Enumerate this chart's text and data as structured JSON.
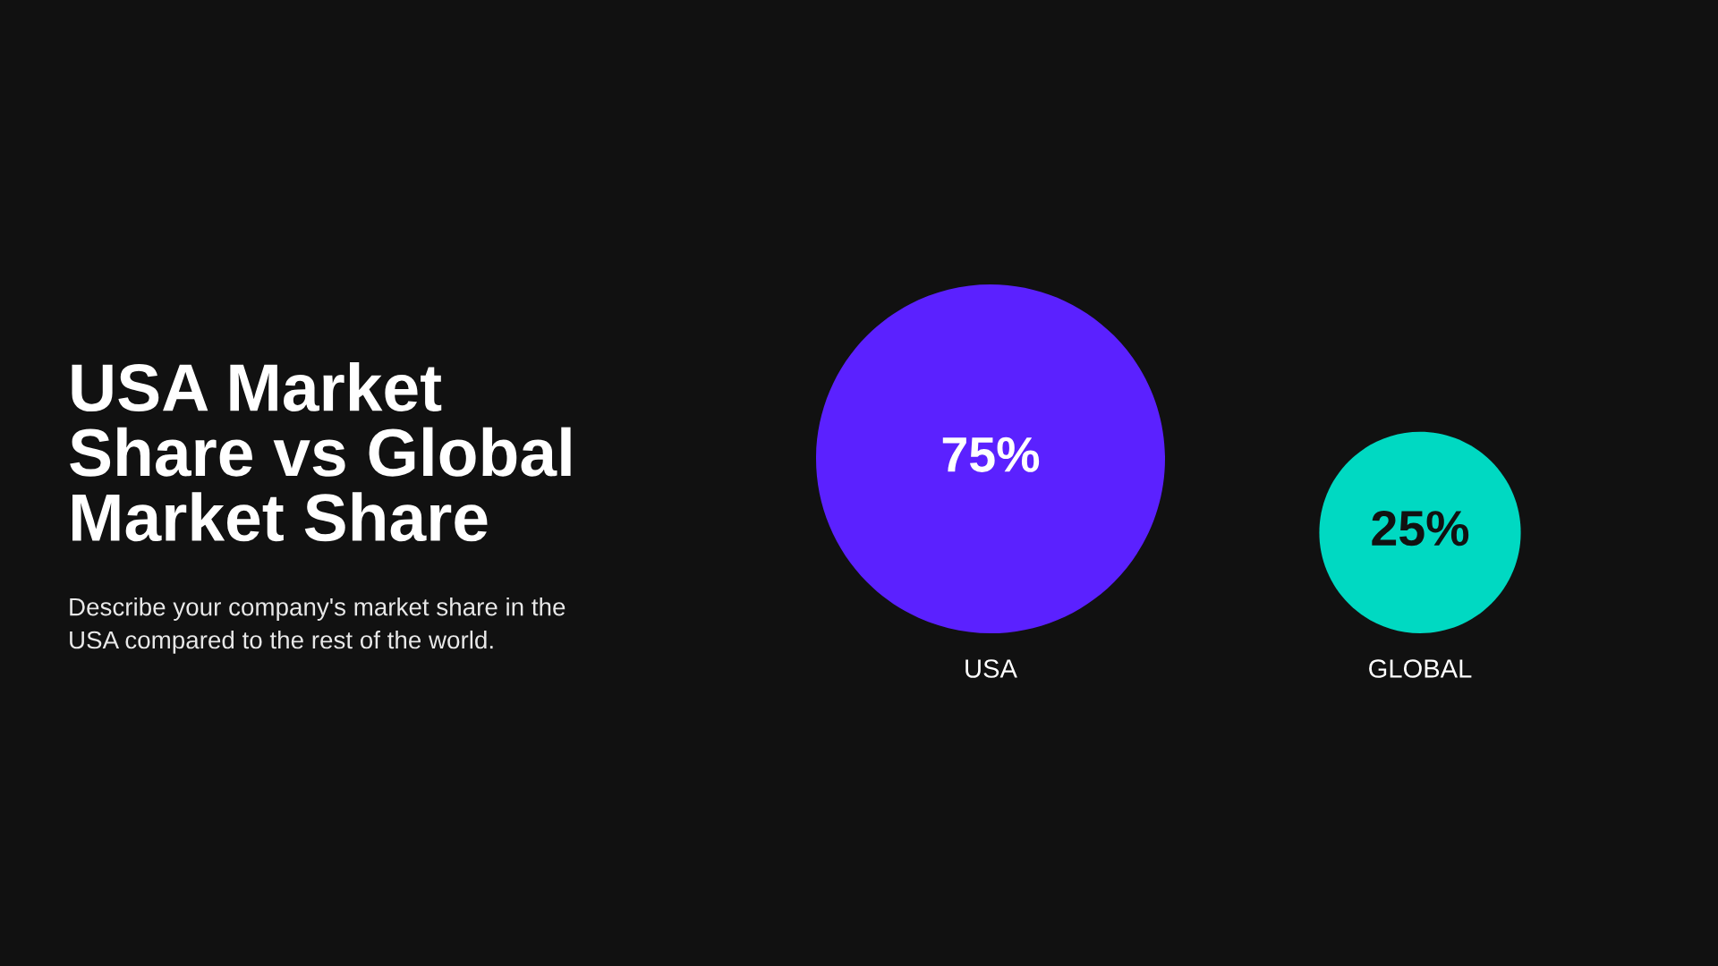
{
  "chart_data": {
    "type": "other",
    "title": "USA Market\nShare vs Global\nMarket Share",
    "subtitle": "Describe your company's market share in the\nUSA compared to the rest of the world.",
    "categories": [
      "USA",
      "GLOBAL"
    ],
    "values": [
      75,
      25
    ],
    "value_labels": [
      "75%",
      "25%"
    ],
    "colors": [
      "#5b21ff",
      "#00d9c2"
    ]
  }
}
